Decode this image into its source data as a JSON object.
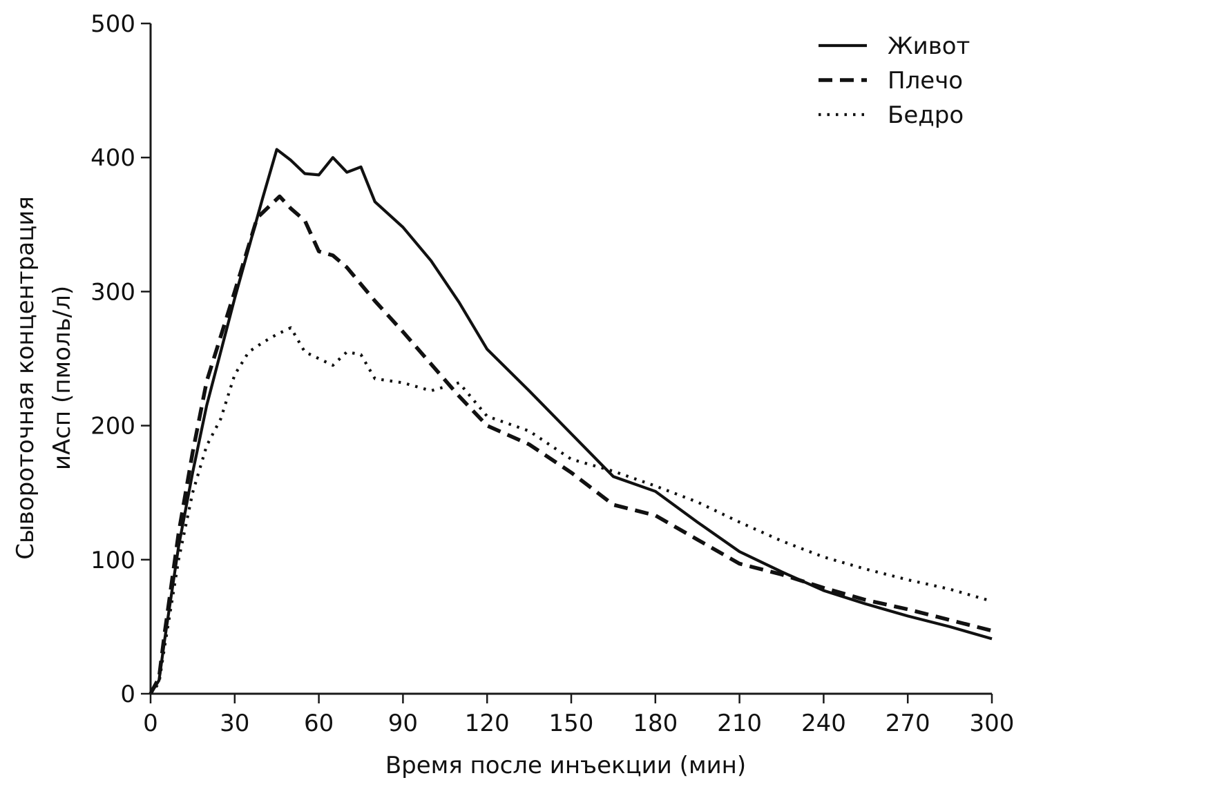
{
  "chart_data": {
    "type": "line",
    "title": "",
    "xlabel": "Время после инъекции (мин)",
    "ylabel_lines": [
      "Сывороточная концентрация",
      "иАсп (пмоль/л)"
    ],
    "xlim": [
      0,
      300
    ],
    "ylim": [
      0,
      500
    ],
    "xticks": [
      0,
      30,
      60,
      90,
      120,
      150,
      180,
      210,
      240,
      270,
      300
    ],
    "yticks": [
      0,
      100,
      200,
      300,
      400,
      500
    ],
    "grid": false,
    "legend_position": "top-right",
    "series": [
      {
        "name": "Живот",
        "style": "solid",
        "points": [
          [
            0,
            0
          ],
          [
            3,
            10
          ],
          [
            5,
            40
          ],
          [
            10,
            110
          ],
          [
            15,
            165
          ],
          [
            20,
            215
          ],
          [
            30,
            295
          ],
          [
            40,
            370
          ],
          [
            45,
            406
          ],
          [
            50,
            398
          ],
          [
            55,
            388
          ],
          [
            60,
            387
          ],
          [
            65,
            400
          ],
          [
            70,
            389
          ],
          [
            75,
            393
          ],
          [
            80,
            367
          ],
          [
            90,
            348
          ],
          [
            100,
            323
          ],
          [
            110,
            292
          ],
          [
            120,
            257
          ],
          [
            135,
            226
          ],
          [
            150,
            194
          ],
          [
            165,
            162
          ],
          [
            180,
            151
          ],
          [
            195,
            128
          ],
          [
            210,
            106
          ],
          [
            225,
            91
          ],
          [
            240,
            77
          ],
          [
            255,
            67
          ],
          [
            270,
            58
          ],
          [
            285,
            50
          ],
          [
            300,
            41
          ]
        ]
      },
      {
        "name": "Плечо",
        "style": "dashed",
        "points": [
          [
            0,
            0
          ],
          [
            3,
            12
          ],
          [
            5,
            45
          ],
          [
            10,
            120
          ],
          [
            15,
            180
          ],
          [
            20,
            233
          ],
          [
            30,
            300
          ],
          [
            38,
            355
          ],
          [
            46,
            371
          ],
          [
            50,
            362
          ],
          [
            55,
            353
          ],
          [
            60,
            330
          ],
          [
            65,
            327
          ],
          [
            70,
            318
          ],
          [
            80,
            293
          ],
          [
            90,
            270
          ],
          [
            100,
            246
          ],
          [
            110,
            222
          ],
          [
            120,
            200
          ],
          [
            135,
            186
          ],
          [
            150,
            165
          ],
          [
            165,
            141
          ],
          [
            180,
            133
          ],
          [
            195,
            115
          ],
          [
            210,
            97
          ],
          [
            225,
            89
          ],
          [
            240,
            79
          ],
          [
            255,
            70
          ],
          [
            270,
            63
          ],
          [
            285,
            55
          ],
          [
            300,
            47
          ]
        ]
      },
      {
        "name": "Бедро",
        "style": "dotted",
        "points": [
          [
            0,
            0
          ],
          [
            3,
            8
          ],
          [
            5,
            35
          ],
          [
            10,
            100
          ],
          [
            15,
            150
          ],
          [
            20,
            185
          ],
          [
            25,
            205
          ],
          [
            30,
            238
          ],
          [
            35,
            255
          ],
          [
            40,
            262
          ],
          [
            45,
            268
          ],
          [
            50,
            273
          ],
          [
            55,
            255
          ],
          [
            60,
            250
          ],
          [
            65,
            245
          ],
          [
            70,
            255
          ],
          [
            75,
            253
          ],
          [
            80,
            235
          ],
          [
            90,
            232
          ],
          [
            100,
            226
          ],
          [
            110,
            232
          ],
          [
            120,
            207
          ],
          [
            135,
            196
          ],
          [
            150,
            175
          ],
          [
            165,
            166
          ],
          [
            180,
            155
          ],
          [
            195,
            143
          ],
          [
            210,
            128
          ],
          [
            225,
            114
          ],
          [
            240,
            102
          ],
          [
            255,
            93
          ],
          [
            270,
            85
          ],
          [
            285,
            78
          ],
          [
            300,
            69
          ]
        ]
      }
    ]
  }
}
